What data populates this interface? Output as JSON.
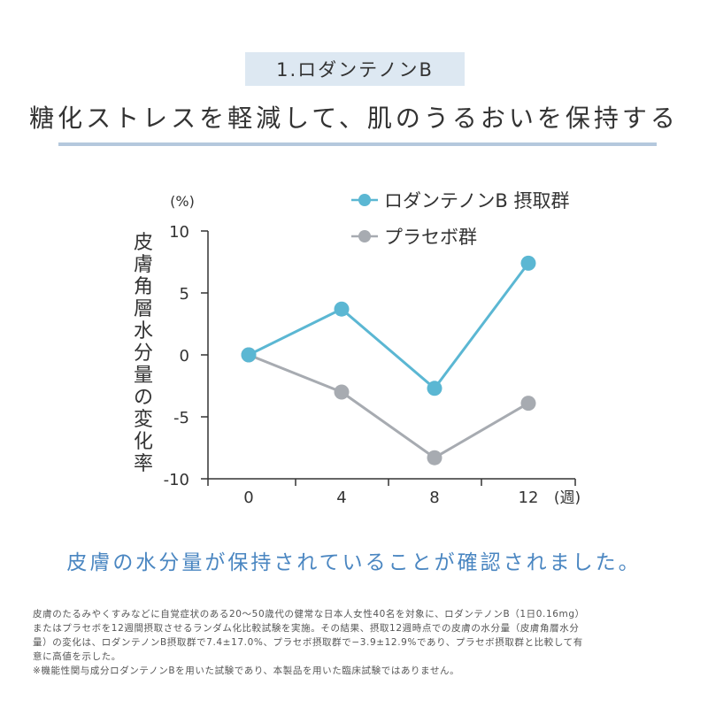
{
  "badge": "1.ロダンテノンB",
  "headline": "糖化ストレスを軽減して、肌のうるおいを保持する",
  "chart_data": {
    "type": "line",
    "y_unit": "(%)",
    "ylabel": "皮膚角層水分量の変化率",
    "x_unit": "(週)",
    "x": [
      0,
      4,
      8,
      12
    ],
    "xticks": [
      "0",
      "4",
      "8",
      "12"
    ],
    "ylim": [
      -10,
      10
    ],
    "yticks": [
      "10",
      "5",
      "0",
      "-5",
      "-10"
    ],
    "ytick_values": [
      10,
      5,
      0,
      -5,
      -10
    ],
    "grid": false,
    "legend_position": "top-right",
    "series": [
      {
        "name": "ロダンテノンB 摂取群",
        "values": [
          0,
          3.7,
          -2.7,
          7.4
        ],
        "color": "#5bb7d3"
      },
      {
        "name": "プラセボ群",
        "values": [
          0,
          -3.0,
          -8.3,
          -3.9
        ],
        "color": "#a7abb1"
      }
    ]
  },
  "conclusion": "皮膚の水分量が保持されていることが確認されました。",
  "footnote": [
    "皮膚のたるみやくすみなどに自覚症状のある20〜50歳代の健常な日本人女性40名を対象に、ロダンテノンB（1日0.16mg）",
    "またはプラセボを12週間摂取させるランダム化比較試験を実施。その結果、摂取12週時点での皮膚の水分量（皮膚角層水分",
    "量）の変化は、ロダンテノンB摂取群で7.4±17.0%、プラセボ摂取群で−3.9±12.9%であり、プラセボ摂取群と比較して有",
    "意に高値を示した。",
    "※機能性関与成分ロダンテノンBを用いた試験であり、本製品を用いた臨床試験ではありません。"
  ]
}
